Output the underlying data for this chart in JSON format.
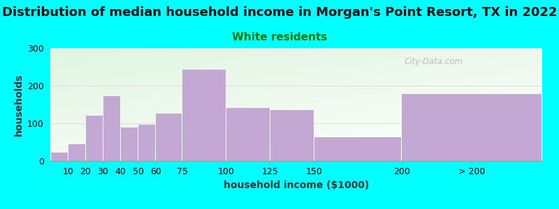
{
  "title": "Distribution of median household income in Morgan's Point Resort, TX in 2022",
  "subtitle": "White residents",
  "xlabel": "household income ($1000)",
  "ylabel": "households",
  "background_color": "#00FFFF",
  "bar_color": "#C4A8D4",
  "bar_edge_color": "none",
  "categories": [
    "10",
    "20",
    "30",
    "40",
    "50",
    "60",
    "75",
    "100",
    "125",
    "150",
    "200",
    "> 200"
  ],
  "values": [
    22,
    45,
    120,
    173,
    88,
    97,
    126,
    242,
    140,
    136,
    63,
    178
  ],
  "left_edges": [
    0,
    10,
    20,
    30,
    40,
    50,
    60,
    75,
    100,
    125,
    150,
    200
  ],
  "bar_widths": [
    10,
    10,
    10,
    10,
    10,
    10,
    15,
    25,
    25,
    25,
    50,
    80
  ],
  "xlim": [
    0,
    280
  ],
  "xtick_positions": [
    10,
    20,
    30,
    40,
    50,
    60,
    75,
    100,
    125,
    150,
    200,
    240
  ],
  "xtick_labels": [
    "10",
    "20",
    "30",
    "40",
    "50",
    "60",
    "75",
    "100",
    "125",
    "150",
    "200",
    "> 200"
  ],
  "ylim": [
    0,
    300
  ],
  "yticks": [
    0,
    100,
    200,
    300
  ],
  "title_fontsize": 13,
  "subtitle_fontsize": 11,
  "subtitle_color": "#007700",
  "axis_label_fontsize": 10,
  "tick_fontsize": 9,
  "watermark_text": "City-Data.com",
  "grid_color": "#DDDDDD",
  "plot_bg_grad_left": "#D8EED0",
  "plot_bg_grad_right": "#F8FFF8"
}
